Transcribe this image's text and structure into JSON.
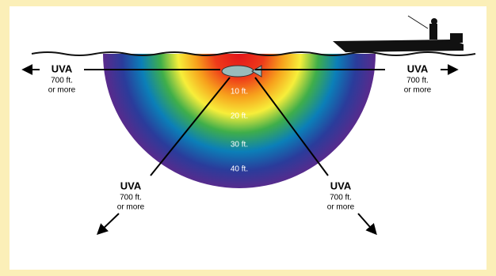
{
  "uva_labels": [
    {
      "title": "UVA",
      "lines": [
        "700 ft.",
        "or more"
      ]
    },
    {
      "title": "UVA",
      "lines": [
        "700 ft.",
        "or more"
      ]
    },
    {
      "title": "UVA",
      "lines": [
        "700 ft.",
        "or more"
      ]
    },
    {
      "title": "UVA",
      "lines": [
        "700 ft.",
        "or more"
      ]
    }
  ],
  "depth_labels": [
    "10 ft.",
    "20 ft.",
    "30 ft.",
    "40 ft."
  ]
}
